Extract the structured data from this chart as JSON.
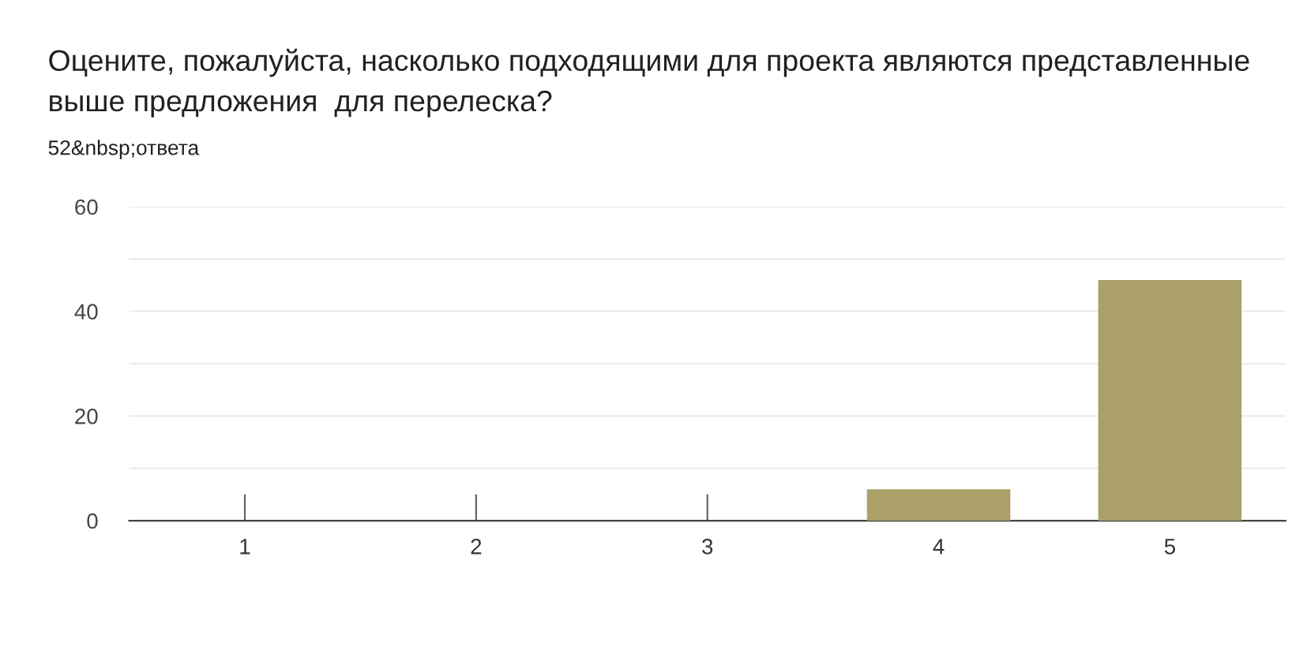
{
  "chart_data": {
    "type": "bar",
    "title": "Оцените, пожалуйста, насколько подходящими для проекта являются представленные выше предложения  для перелеска?",
    "subtitle": "52&nbsp;ответа",
    "categories": [
      "1",
      "2",
      "3",
      "4",
      "5"
    ],
    "values": [
      0,
      0,
      0,
      6,
      46
    ],
    "color": "#aba068",
    "ylim": [
      0,
      60
    ],
    "yticks": [
      0,
      {
        "value": 10,
        "label": null
      },
      20,
      {
        "value": 30,
        "label": null
      },
      40,
      {
        "value": 50,
        "label": null
      },
      60
    ],
    "grid": "y",
    "legend": false
  }
}
